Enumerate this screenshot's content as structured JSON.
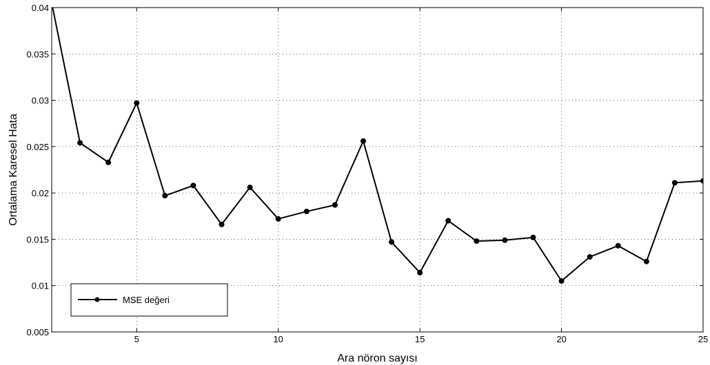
{
  "chart_data": {
    "type": "line",
    "xlabel": "Ara nöron sayısı",
    "ylabel": "Ortalama Karesel Hata",
    "xlim": [
      2,
      25
    ],
    "ylim": [
      0.005,
      0.04
    ],
    "xticks": [
      5,
      10,
      15,
      20,
      25
    ],
    "xtick_labels": [
      "5",
      "10",
      "15",
      "20",
      "25"
    ],
    "yticks": [
      0.005,
      0.01,
      0.015,
      0.02,
      0.025,
      0.03,
      0.035,
      0.04
    ],
    "ytick_labels": [
      "0.005",
      "0.01",
      "0.015",
      "0.02",
      "0.025",
      "0.03",
      "0.035",
      "0.04"
    ],
    "grid": true,
    "legend_position": "bottom-left",
    "series": [
      {
        "name": "MSE değeri",
        "color": "#000000",
        "x": [
          2,
          3,
          4,
          5,
          6,
          7,
          8,
          9,
          10,
          11,
          12,
          13,
          14,
          15,
          16,
          17,
          18,
          19,
          20,
          21,
          22,
          23,
          24,
          25
        ],
        "y": [
          0.0405,
          0.0254,
          0.0233,
          0.0297,
          0.0197,
          0.0208,
          0.0166,
          0.0206,
          0.0172,
          0.018,
          0.0187,
          0.0256,
          0.0147,
          0.0114,
          0.017,
          0.0148,
          0.0149,
          0.0152,
          0.0105,
          0.0131,
          0.0143,
          0.0126,
          0.0211,
          0.0213
        ]
      }
    ]
  }
}
